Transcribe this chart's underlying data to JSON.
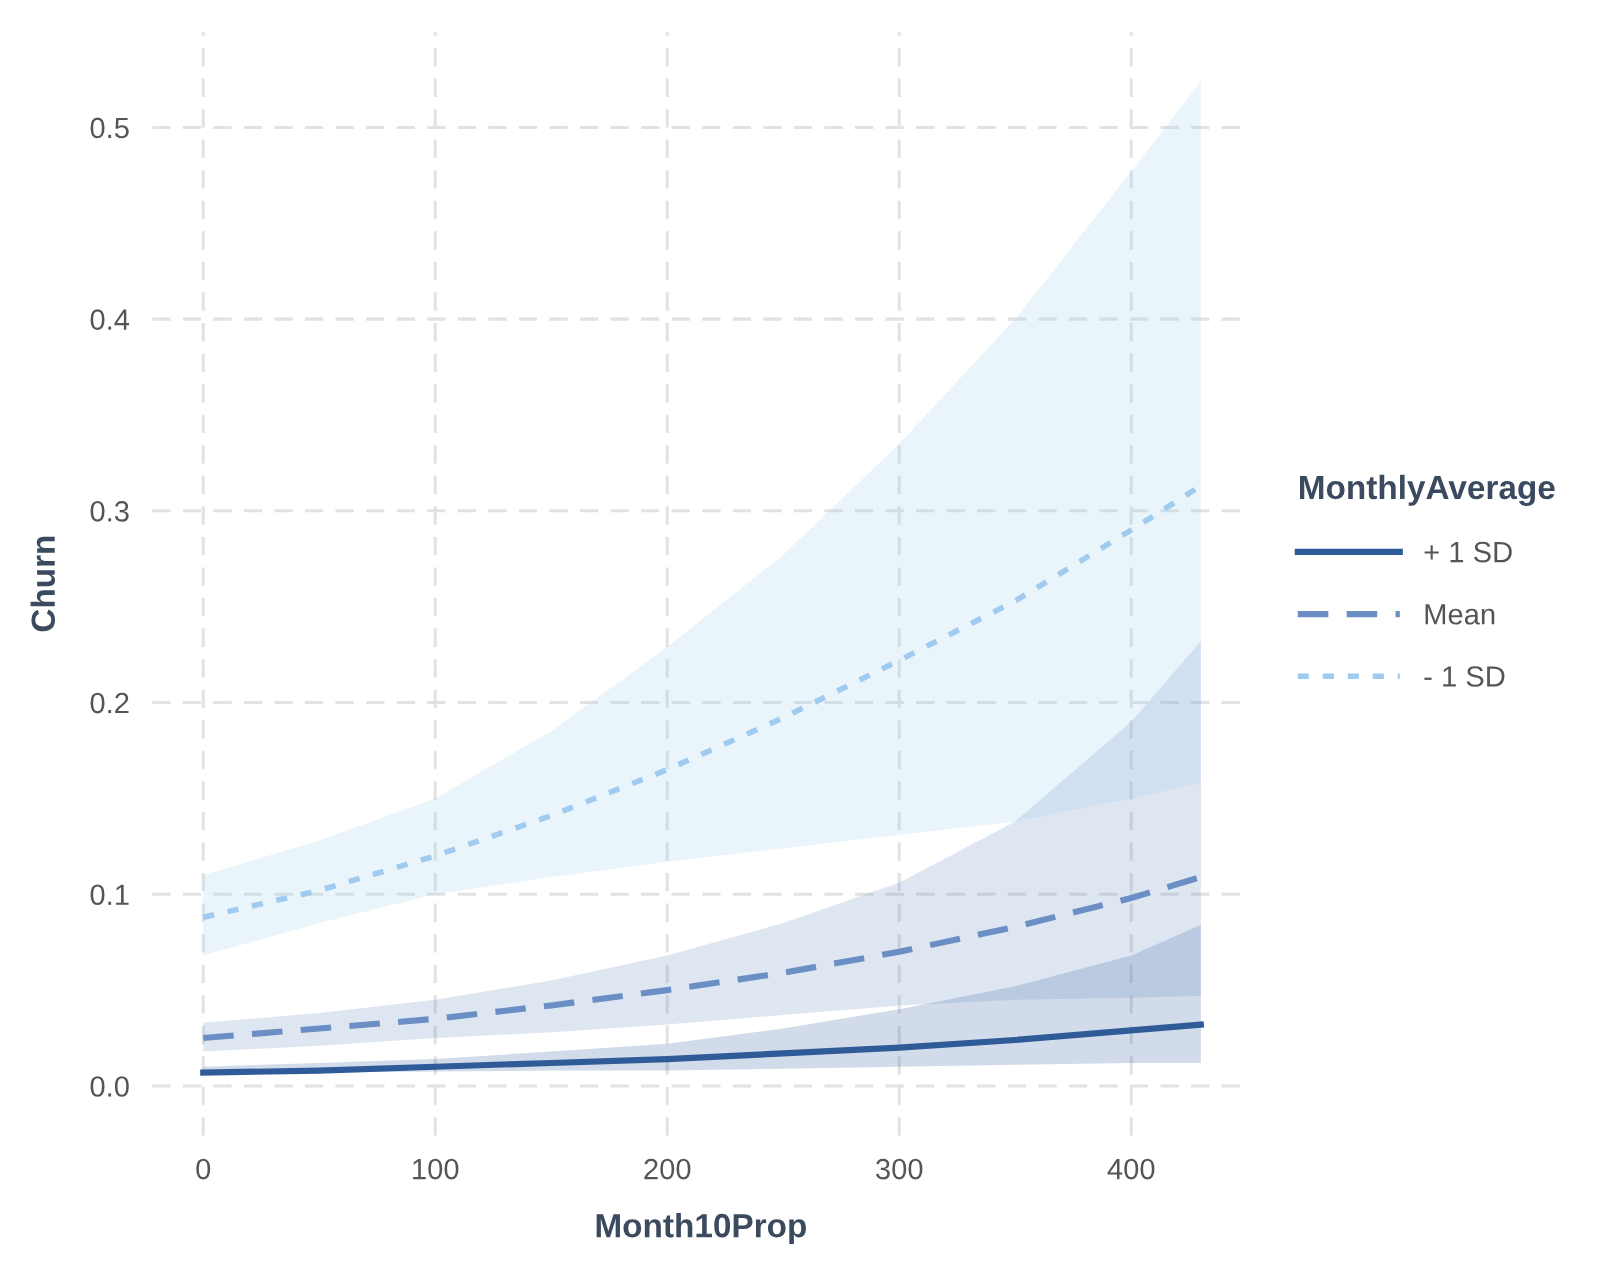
{
  "chart_data": {
    "type": "line",
    "xlabel": "Month10Prop",
    "ylabel": "Churn",
    "legend_title": "MonthlyAverage",
    "legend": "right",
    "grid": true,
    "x": [
      0,
      50,
      100,
      150,
      200,
      250,
      300,
      350,
      400,
      430
    ],
    "xlim": [
      -22,
      451
    ],
    "ylim": [
      -0.026,
      0.55
    ],
    "xticks": [
      0,
      100,
      200,
      300,
      400
    ],
    "yticks": [
      {
        "value": 0,
        "label": "0.0"
      },
      0.1,
      0.2,
      0.3,
      0.4,
      0.5
    ],
    "series": [
      {
        "name": "+ 1 SD",
        "color": "#2f5c99",
        "line_style": "solid",
        "values": [
          0.007,
          0.008,
          0.01,
          0.012,
          0.014,
          0.017,
          0.02,
          0.024,
          0.029,
          0.032
        ],
        "upper": [
          0.01,
          0.012,
          0.014,
          0.018,
          0.022,
          0.03,
          0.04,
          0.052,
          0.068,
          0.084
        ],
        "lower": [
          0.006,
          0.007,
          0.0075,
          0.008,
          0.008,
          0.009,
          0.01,
          0.011,
          0.012,
          0.012
        ]
      },
      {
        "name": "Mean",
        "color": "#6b8fc4",
        "line_style": "dashed",
        "values": [
          0.025,
          0.03,
          0.035,
          0.042,
          0.05,
          0.059,
          0.07,
          0.083,
          0.098,
          0.109
        ],
        "upper": [
          0.033,
          0.038,
          0.045,
          0.055,
          0.068,
          0.085,
          0.106,
          0.138,
          0.19,
          0.232
        ],
        "lower": [
          0.018,
          0.021,
          0.025,
          0.028,
          0.032,
          0.037,
          0.042,
          0.045,
          0.046,
          0.047
        ]
      },
      {
        "name": "- 1 SD",
        "color": "#9ecbef",
        "line_style": "dotted",
        "values": [
          0.088,
          0.102,
          0.12,
          0.141,
          0.165,
          0.192,
          0.222,
          0.253,
          0.29,
          0.313
        ],
        "upper": [
          0.11,
          0.128,
          0.15,
          0.185,
          0.229,
          0.277,
          0.335,
          0.4,
          0.477,
          0.524
        ],
        "lower": [
          0.068,
          0.085,
          0.1,
          0.109,
          0.117,
          0.124,
          0.131,
          0.138,
          0.15,
          0.158
        ]
      }
    ]
  }
}
